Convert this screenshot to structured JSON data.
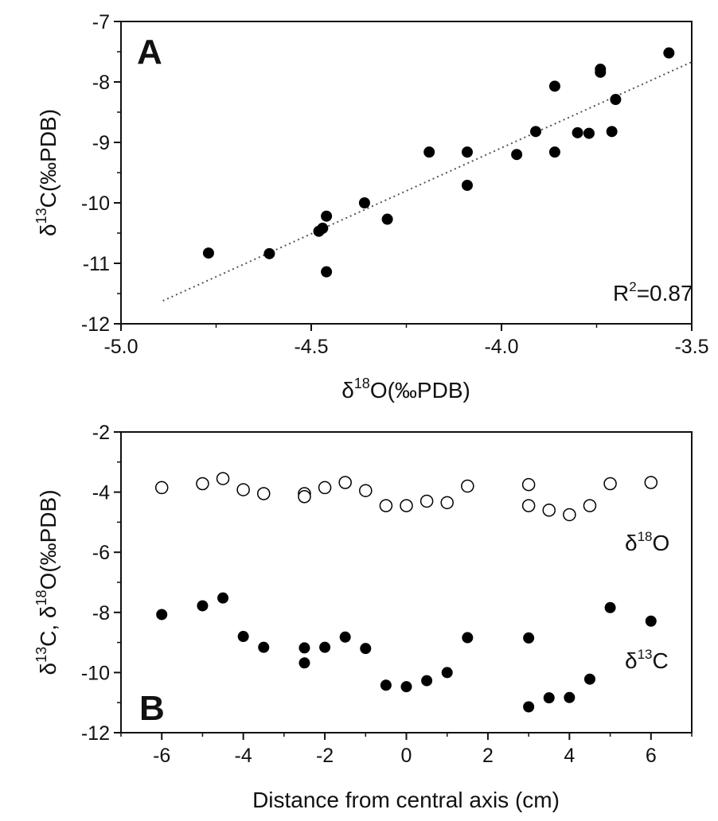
{
  "chart_data": [
    {
      "panel": "A",
      "type": "scatter",
      "panel_label": "A",
      "xlabel": {
        "main": "δ",
        "sup": "18",
        "rest": "O(‰PDB)"
      },
      "ylabel": {
        "main": "δ",
        "sup": "13",
        "rest": "C(‰PDB)"
      },
      "xlim": [
        -5.0,
        -3.5
      ],
      "ylim": [
        -12,
        -7
      ],
      "xticks": [
        -5.0,
        -4.5,
        -4.0,
        -3.5
      ],
      "xtick_labels": [
        "-5.0",
        "-4.5",
        "-4.0",
        "-3.5"
      ],
      "yticks": [
        -12,
        -11,
        -10,
        -9,
        -8,
        -7
      ],
      "ytick_labels": [
        "-12",
        "-11",
        "-10",
        "-9",
        "-8",
        "-7"
      ],
      "annotation": {
        "prefix": "R",
        "sup": "2",
        "rest": "=0.87"
      },
      "trendline": {
        "style": "dotted",
        "x": [
          -4.89,
          -3.5
        ],
        "y": [
          -11.62,
          -7.67
        ]
      },
      "series": [
        {
          "marker": "filled-circle",
          "x": [
            -4.77,
            -4.61,
            -4.48,
            -4.47,
            -4.46,
            -4.46,
            -4.36,
            -4.3,
            -4.19,
            -4.09,
            -4.09,
            -3.96,
            -3.91,
            -3.86,
            -3.86,
            -3.8,
            -3.77,
            -3.74,
            -3.74,
            -3.71,
            -3.7,
            -3.56
          ],
          "y": [
            -10.83,
            -10.84,
            -10.47,
            -10.42,
            -10.22,
            -11.14,
            -10.0,
            -10.27,
            -9.16,
            -9.16,
            -9.71,
            -9.2,
            -8.82,
            -9.16,
            -8.07,
            -8.84,
            -8.85,
            -7.79,
            -7.84,
            -8.82,
            -8.29,
            -7.52
          ]
        }
      ]
    },
    {
      "panel": "B",
      "type": "scatter",
      "panel_label": "B",
      "xlabel": "Distance from central axis (cm)",
      "ylabel": {
        "p1": "δ",
        "s1": "13",
        "p2": "C,  δ",
        "s2": "18",
        "p3": "O(‰PDB)"
      },
      "xlim": [
        -7,
        7
      ],
      "ylim": [
        -12,
        -2
      ],
      "xticks": [
        -6,
        -4,
        -2,
        0,
        2,
        4,
        6
      ],
      "xtick_labels": [
        "-6",
        "-4",
        "-2",
        "0",
        "2",
        "4",
        "6"
      ],
      "yticks": [
        -12,
        -10,
        -8,
        -6,
        -4,
        -2
      ],
      "ytick_labels": [
        "-12",
        "-10",
        "-8",
        "-6",
        "-4",
        "-2"
      ],
      "series": [
        {
          "label": {
            "main": "δ",
            "sup": "18",
            "rest": "O"
          },
          "marker": "open-circle",
          "x": [
            -6,
            -5,
            -4.5,
            -4,
            -3.5,
            -2.5,
            -2.5,
            -2,
            -1.5,
            -1,
            -0.5,
            0,
            0.5,
            1,
            1.5,
            3,
            3,
            3.5,
            4,
            4.5,
            5,
            6
          ],
          "y": [
            -3.85,
            -3.72,
            -3.55,
            -3.92,
            -4.05,
            -4.05,
            -4.15,
            -3.85,
            -3.68,
            -3.95,
            -4.45,
            -4.45,
            -4.3,
            -4.35,
            -3.8,
            -3.75,
            -4.45,
            -4.6,
            -4.75,
            -4.45,
            -3.72,
            -3.68
          ]
        },
        {
          "label": {
            "main": "δ",
            "sup": "13",
            "rest": "C"
          },
          "marker": "filled-circle",
          "x": [
            -6,
            -5,
            -4.5,
            -4,
            -3.5,
            -2.5,
            -2.5,
            -2,
            -1.5,
            -1,
            -0.5,
            0,
            0.5,
            1,
            1.5,
            3,
            3,
            3.5,
            4,
            4.5,
            5,
            6
          ],
          "y": [
            -8.07,
            -7.78,
            -7.52,
            -8.8,
            -9.16,
            -9.18,
            -9.68,
            -9.16,
            -8.82,
            -9.2,
            -10.42,
            -10.47,
            -10.27,
            -10.0,
            -8.84,
            -8.85,
            -11.14,
            -10.84,
            -10.83,
            -10.22,
            -7.84,
            -8.29
          ]
        }
      ]
    }
  ]
}
